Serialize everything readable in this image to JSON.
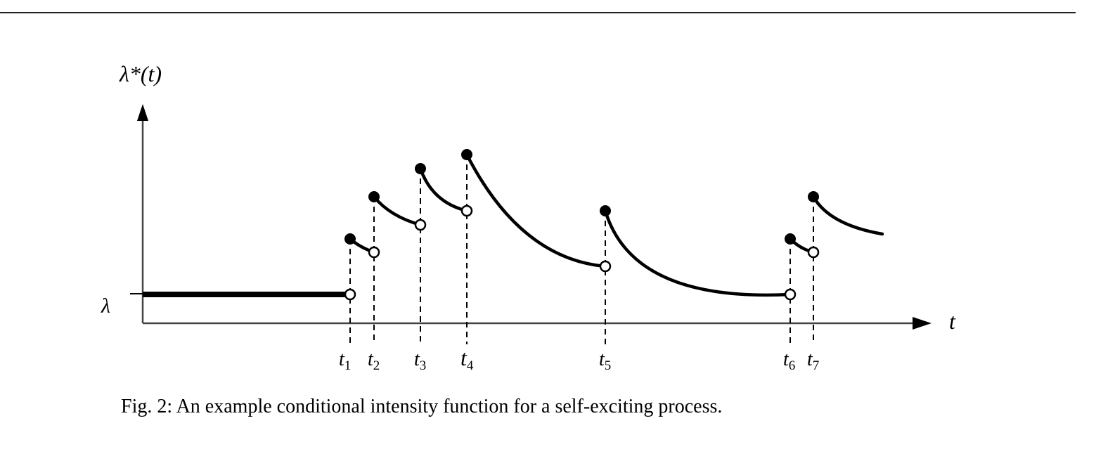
{
  "figure": {
    "y_axis_label": "λ*(t)",
    "x_axis_label": "t",
    "baseline_label": "λ",
    "event_labels": [
      {
        "base": "t",
        "sub": "1"
      },
      {
        "base": "t",
        "sub": "2"
      },
      {
        "base": "t",
        "sub": "3"
      },
      {
        "base": "t",
        "sub": "4"
      },
      {
        "base": "t",
        "sub": "5"
      },
      {
        "base": "t",
        "sub": "6"
      },
      {
        "base": "t",
        "sub": "7"
      }
    ],
    "caption": "Fig. 2: An example conditional intensity function for a self-exciting process."
  }
}
